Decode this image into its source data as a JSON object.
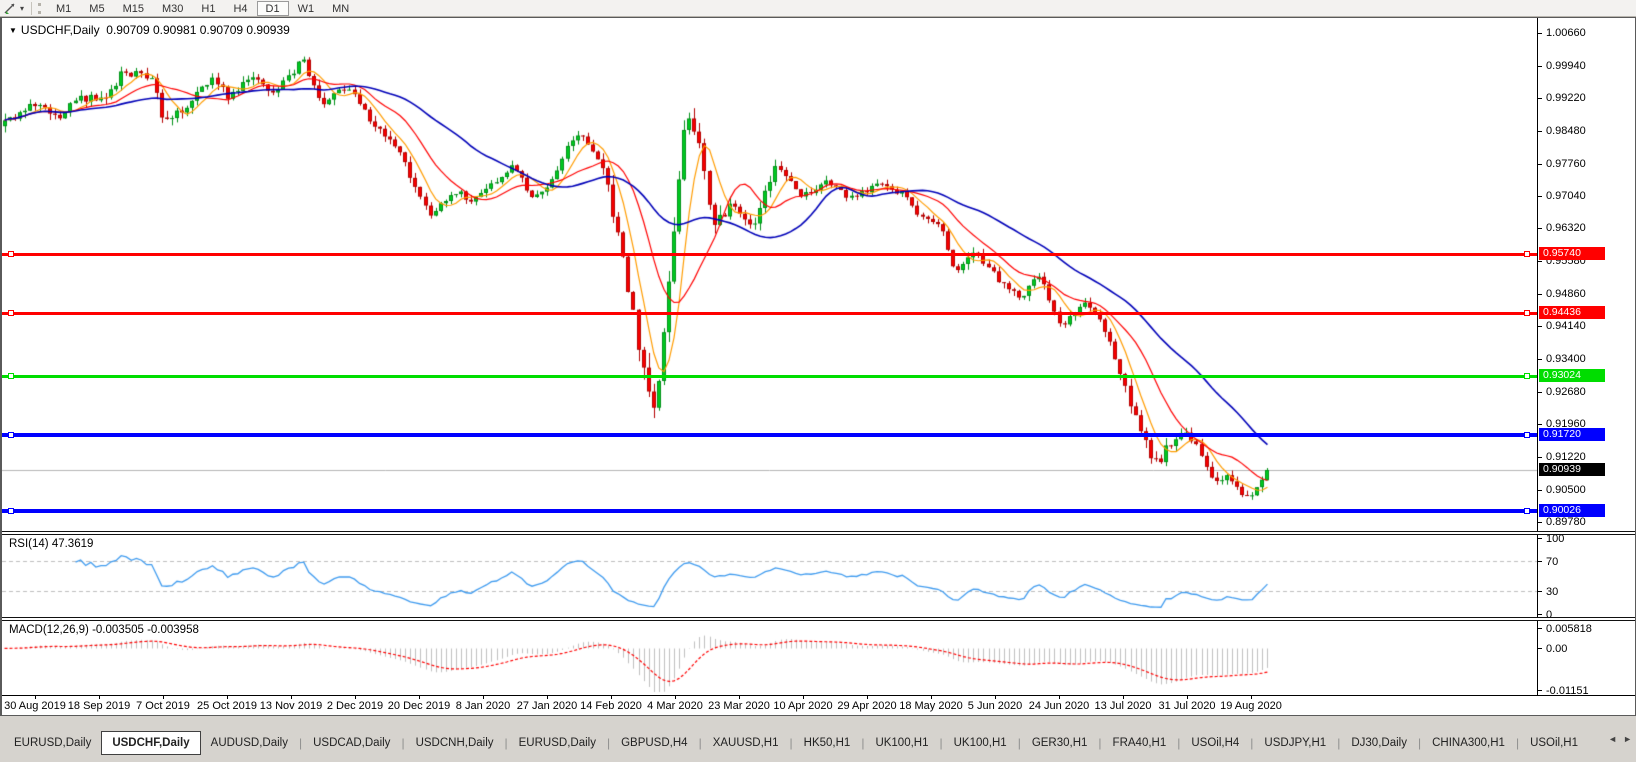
{
  "toolbar": {
    "timeframes": [
      "M1",
      "M5",
      "M15",
      "M30",
      "H1",
      "H4",
      "D1",
      "W1",
      "MN"
    ],
    "active_timeframe": "D1",
    "dropdown_caret": "▾"
  },
  "chart": {
    "dropdown_icon": "▼",
    "title_symbol": "USDCHF,Daily",
    "title_ohlc": "0.90709 0.90981 0.90709 0.90939"
  },
  "indicators": {
    "rsi_label": "RSI(14) 47.3619",
    "macd_label": "MACD(12,26,9) -0.003505 -0.003958"
  },
  "tabs": {
    "items": [
      "EURUSD,Daily",
      "USDCHF,Daily",
      "AUDUSD,Daily",
      "USDCAD,Daily",
      "USDCNH,Daily",
      "EURUSD,Daily",
      "GBPUSD,H4",
      "XAUUSD,H1",
      "HK50,H1",
      "UK100,H1",
      "UK100,H1",
      "GER30,H1",
      "FRA40,H1",
      "USOil,H4",
      "USDJPY,H1",
      "DJ30,Daily",
      "CHINA300,H1",
      "USOil,H1"
    ],
    "active_index": 1,
    "scroll_left": "◄",
    "scroll_right": "►"
  },
  "chart_data": {
    "type": "candlestick",
    "symbol": "USDCHF",
    "timeframe": "Daily",
    "last_ohlc": {
      "open": 0.90709,
      "high": 0.90981,
      "low": 0.90709,
      "close": 0.90939
    },
    "candles_count": 250,
    "bull_fill": "#00cc22",
    "bull_border": "#009018",
    "bear_fill": "#fa0000",
    "bear_border": "#b40000",
    "y_ticks": [
      "1.00660",
      "0.99940",
      "0.99220",
      "0.98480",
      "0.97760",
      "0.97040",
      "0.96320",
      "0.95580",
      "0.94860",
      "0.94140",
      "0.93400",
      "0.92680",
      "0.91960",
      "0.91220",
      "0.90500",
      "0.89780"
    ],
    "x_ticks": [
      "30 Aug 2019",
      "18 Sep 2019",
      "7 Oct 2019",
      "25 Oct 2019",
      "13 Nov 2019",
      "2 Dec 2019",
      "20 Dec 2019",
      "8 Jan 2020",
      "27 Jan 2020",
      "14 Feb 2020",
      "4 Mar 2020",
      "23 Mar 2020",
      "10 Apr 2020",
      "29 Apr 2020",
      "18 May 2020",
      "5 Jun 2020",
      "24 Jun 2020",
      "13 Jul 2020",
      "31 Jul 2020",
      "19 Aug 2020"
    ],
    "levels": [
      {
        "value": 0.9574,
        "label": "0.95740",
        "color": "#ff0000",
        "width": 3
      },
      {
        "value": 0.94436,
        "label": "0.94436",
        "color": "#ff0000",
        "width": 3
      },
      {
        "value": 0.93024,
        "label": "0.93024",
        "color": "#00dd00",
        "width": 3
      },
      {
        "value": 0.9172,
        "label": "0.91720",
        "color": "#0000ff",
        "width": 4
      },
      {
        "value": 0.90939,
        "label": "0.90939",
        "color": "#b4b4b4",
        "width": 1,
        "label_bg": "#000000",
        "current": true
      },
      {
        "value": 0.90026,
        "label": "0.90026",
        "color": "#0000ff",
        "width": 4
      }
    ],
    "overlays": [
      {
        "name": "ma-fast",
        "type": "sma",
        "period": 6,
        "color": "#ff9c00"
      },
      {
        "name": "ma-mid",
        "type": "sma",
        "period": 14,
        "color": "#ff0000"
      },
      {
        "name": "ma-slow",
        "type": "sma",
        "period": 33,
        "color": "#0000b8"
      }
    ],
    "rsi": {
      "period": 14,
      "value": 47.3619,
      "scale": [
        "100",
        "70",
        "30",
        "0"
      ],
      "guides": [
        70,
        30
      ],
      "color": "#3f9bef",
      "guide_color": "#bdbdbd"
    },
    "macd": {
      "fast": 12,
      "slow": 26,
      "signal_period": 9,
      "value": -0.003505,
      "signal_value": -0.003958,
      "scale": [
        "0.005818",
        "0.00",
        "-0.01151"
      ],
      "hist_color": "#bfbfbf",
      "signal_color": "#ff0000"
    },
    "anchors": [
      [
        0.0,
        0.9865,
        0.002
      ],
      [
        0.024,
        0.9905,
        0.002
      ],
      [
        0.043,
        0.988,
        0.0018
      ],
      [
        0.059,
        0.9925,
        0.0018
      ],
      [
        0.079,
        0.9915,
        0.0018
      ],
      [
        0.095,
        0.9985,
        0.002
      ],
      [
        0.118,
        0.996,
        0.0018
      ],
      [
        0.126,
        0.986,
        0.0022
      ],
      [
        0.146,
        0.991,
        0.0018
      ],
      [
        0.166,
        0.997,
        0.0016
      ],
      [
        0.177,
        0.9918,
        0.0018
      ],
      [
        0.193,
        0.9972,
        0.0016
      ],
      [
        0.213,
        0.9938,
        0.0016
      ],
      [
        0.237,
        1.0005,
        0.0018
      ],
      [
        0.252,
        0.9912,
        0.0018
      ],
      [
        0.272,
        0.9948,
        0.0015
      ],
      [
        0.288,
        0.9878,
        0.0016
      ],
      [
        0.312,
        0.98,
        0.0016
      ],
      [
        0.339,
        0.9655,
        0.0018
      ],
      [
        0.355,
        0.9718,
        0.0015
      ],
      [
        0.371,
        0.9688,
        0.0014
      ],
      [
        0.402,
        0.9772,
        0.0014
      ],
      [
        0.418,
        0.9702,
        0.0015
      ],
      [
        0.43,
        0.9725,
        0.0014
      ],
      [
        0.453,
        0.9848,
        0.0015
      ],
      [
        0.473,
        0.9782,
        0.0018
      ],
      [
        0.485,
        0.9625,
        0.003
      ],
      [
        0.501,
        0.939,
        0.004
      ],
      [
        0.513,
        0.9225,
        0.0045
      ],
      [
        0.521,
        0.9345,
        0.0045
      ],
      [
        0.53,
        0.964,
        0.0045
      ],
      [
        0.54,
        0.9895,
        0.004
      ],
      [
        0.552,
        0.98,
        0.0032
      ],
      [
        0.56,
        0.9635,
        0.003
      ],
      [
        0.576,
        0.9685,
        0.0022
      ],
      [
        0.592,
        0.9632,
        0.002
      ],
      [
        0.611,
        0.9768,
        0.0018
      ],
      [
        0.631,
        0.97,
        0.0016
      ],
      [
        0.651,
        0.9735,
        0.0015
      ],
      [
        0.67,
        0.9698,
        0.0015
      ],
      [
        0.69,
        0.9728,
        0.0014
      ],
      [
        0.71,
        0.9712,
        0.0014
      ],
      [
        0.726,
        0.9652,
        0.0016
      ],
      [
        0.741,
        0.9642,
        0.0016
      ],
      [
        0.753,
        0.9532,
        0.002
      ],
      [
        0.769,
        0.9585,
        0.0016
      ],
      [
        0.789,
        0.9508,
        0.0016
      ],
      [
        0.804,
        0.9478,
        0.0016
      ],
      [
        0.82,
        0.9528,
        0.0015
      ],
      [
        0.836,
        0.9412,
        0.0016
      ],
      [
        0.852,
        0.9465,
        0.0015
      ],
      [
        0.864,
        0.9442,
        0.0015
      ],
      [
        0.875,
        0.9382,
        0.0018
      ],
      [
        0.887,
        0.9282,
        0.0022
      ],
      [
        0.899,
        0.9185,
        0.0024
      ],
      [
        0.911,
        0.9108,
        0.0024
      ],
      [
        0.923,
        0.9148,
        0.002
      ],
      [
        0.934,
        0.919,
        0.0018
      ],
      [
        0.946,
        0.9132,
        0.0018
      ],
      [
        0.958,
        0.9062,
        0.0018
      ],
      [
        0.97,
        0.9078,
        0.0016
      ],
      [
        0.982,
        0.9022,
        0.0016
      ],
      [
        1.0,
        0.90939,
        0.0014
      ]
    ]
  }
}
